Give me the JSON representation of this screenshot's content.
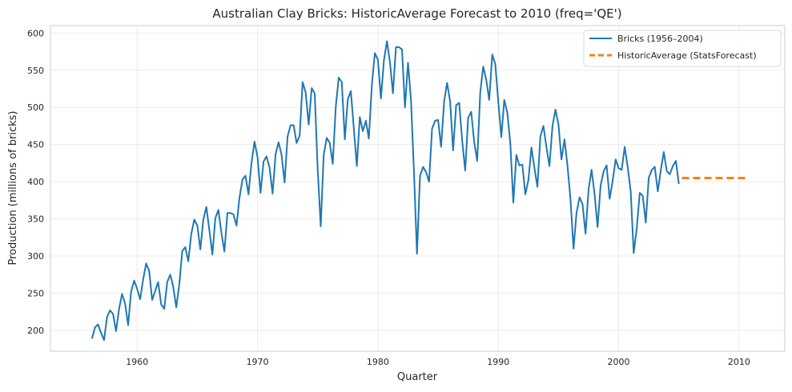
{
  "chart_data": {
    "type": "line",
    "title": "Australian Clay Bricks: HistoricAverage Forecast to 2010 (freq='QE')",
    "xlabel": "Quarter",
    "ylabel": "Production (millions of bricks)",
    "xlim": [
      1952.8,
      2013.8
    ],
    "ylim": [
      172,
      610
    ],
    "xticks": [
      1960,
      1970,
      1980,
      1990,
      2000,
      2010
    ],
    "yticks": [
      200,
      250,
      300,
      350,
      400,
      450,
      500,
      550,
      600
    ],
    "grid": true,
    "legend_position": "top-right",
    "series": [
      {
        "name": "Bricks (1956–2004)",
        "color": "#1f77b4",
        "style": "solid",
        "start_x": 1956.25,
        "step": 0.25,
        "values": [
          189,
          204,
          208,
          197,
          187,
          218,
          227,
          222,
          199,
          229,
          249,
          236,
          207,
          252,
          267,
          256,
          242,
          269,
          290,
          280,
          241,
          253,
          265,
          235,
          229,
          265,
          275,
          259,
          231,
          262,
          307,
          312,
          293,
          330,
          349,
          341,
          309,
          349,
          366,
          335,
          302,
          351,
          362,
          331,
          306,
          358,
          358,
          356,
          341,
          378,
          403,
          408,
          383,
          425,
          454,
          433,
          385,
          427,
          434,
          419,
          384,
          437,
          453,
          436,
          399,
          461,
          476,
          476,
          452,
          462,
          534,
          520,
          477,
          526,
          519,
          417,
          340,
          436,
          459,
          452,
          424,
          501,
          540,
          534,
          457,
          511,
          522,
          472,
          421,
          487,
          468,
          482,
          458,
          531,
          573,
          564,
          512,
          563,
          589,
          561,
          519,
          581,
          581,
          578,
          500,
          560,
          510,
          412,
          303,
          408,
          420,
          413,
          400,
          471,
          482,
          483,
          447,
          508,
          533,
          508,
          442,
          503,
          506,
          456,
          415,
          486,
          494,
          453,
          428,
          520,
          555,
          537,
          510,
          571,
          558,
          508,
          460,
          510,
          493,
          451,
          372,
          436,
          422,
          423,
          383,
          402,
          446,
          419,
          393,
          461,
          475,
          446,
          421,
          475,
          497,
          477,
          430,
          457,
          421,
          376,
          310,
          358,
          379,
          370,
          330,
          390,
          416,
          383,
          339,
          395,
          414,
          422,
          377,
          401,
          430,
          418,
          416,
          447,
          420,
          387,
          304,
          337,
          385,
          381,
          345,
          405,
          416,
          420,
          387,
          416,
          440,
          414,
          410,
          421,
          428,
          397
        ]
      },
      {
        "name": "HistoricAverage (StatsForecast)",
        "color": "#ff7f0e",
        "style": "dashed",
        "x_range": [
          2005.25,
          2010.75
        ],
        "value": 405
      }
    ]
  }
}
